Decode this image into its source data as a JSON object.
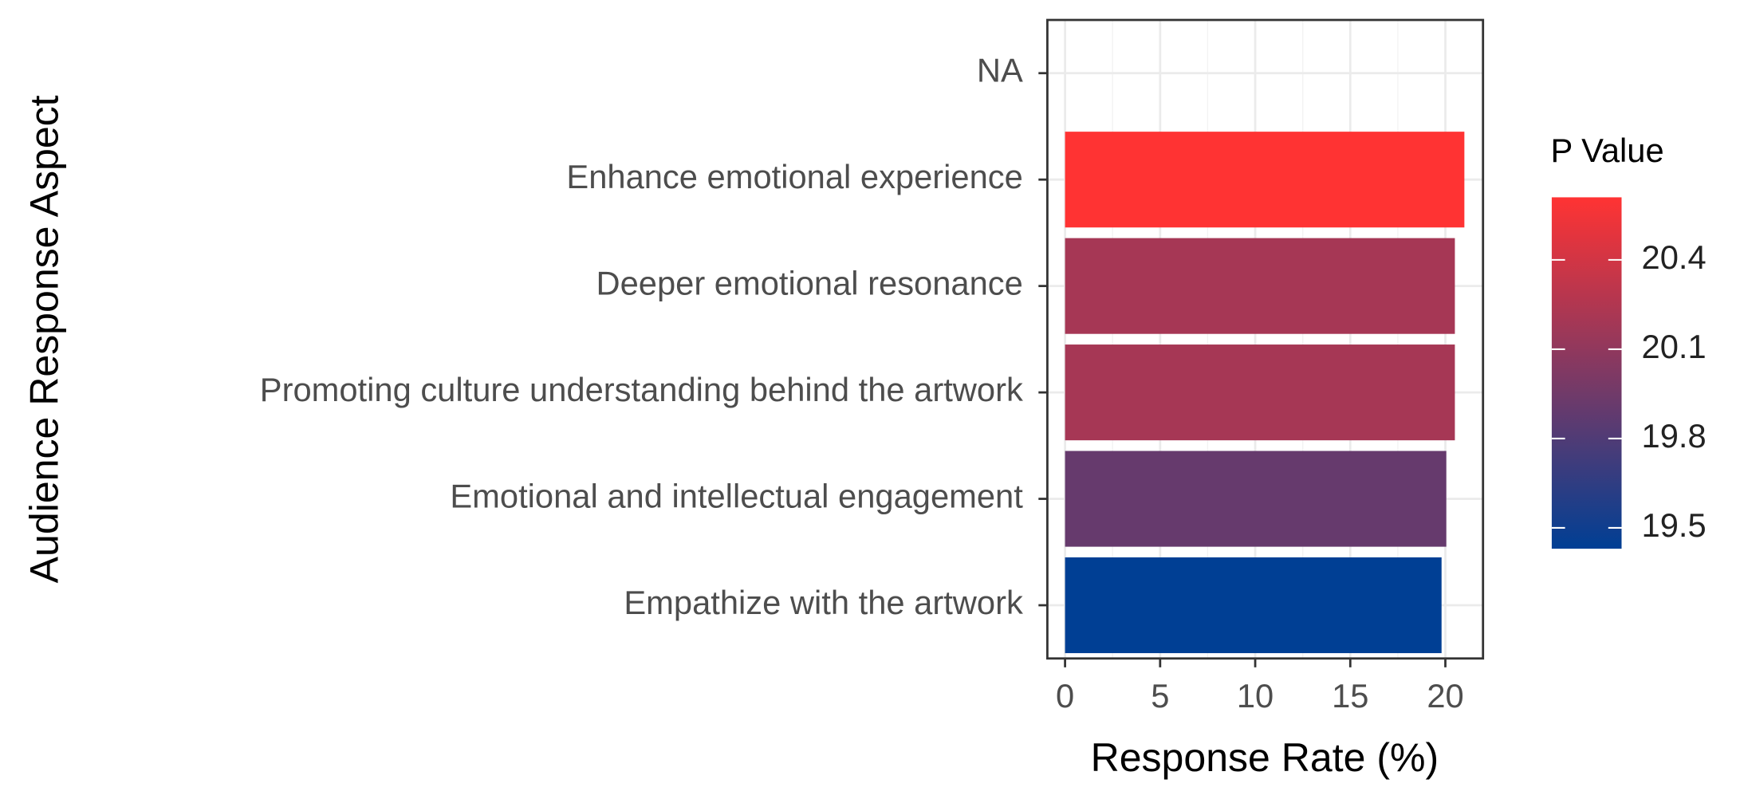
{
  "chart_data": {
    "type": "bar",
    "orientation": "horizontal",
    "x_label": "Response Rate (%)",
    "y_label": "Audience Response Aspect",
    "categories": [
      "NA",
      "Enhance emotional experience",
      "Deeper emotional resonance",
      "Promoting culture understanding behind the artwork",
      "Emotional and intellectual engagement",
      "Empathize with the artwork"
    ],
    "values": [
      null,
      21.0,
      20.5,
      20.5,
      20.05,
      19.8
    ],
    "p_values": [
      null,
      20.61,
      20.2,
      20.2,
      19.9,
      19.43
    ],
    "xlim": [
      -0.93,
      21.98
    ],
    "xticks": [
      0,
      5,
      10,
      15,
      20
    ],
    "grid": true,
    "legend_title": "P Value",
    "legend_lim": [
      19.43,
      20.61
    ],
    "legend_ticks": [
      19.5,
      19.8,
      20.1,
      20.4
    ],
    "colors": {
      "low": "#003f94",
      "high": "#ff3333"
    }
  }
}
